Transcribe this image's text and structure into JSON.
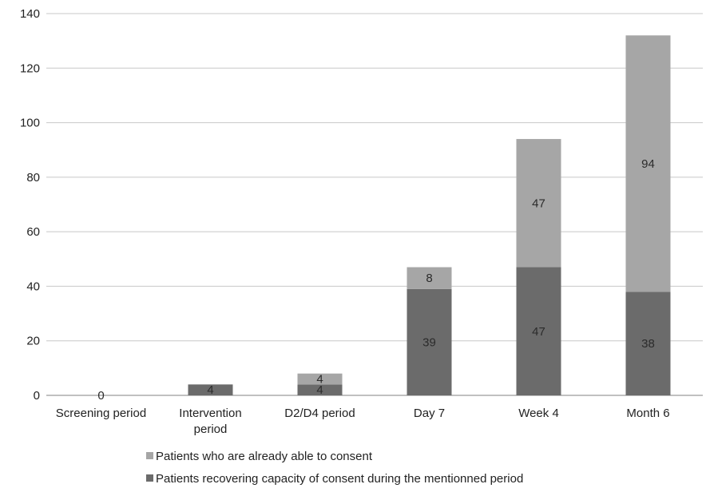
{
  "chart_data": {
    "type": "bar",
    "stacked": true,
    "categories": [
      [
        "Screening period"
      ],
      [
        "Intervention",
        "period"
      ],
      [
        "D2/D4 period"
      ],
      [
        "Day 7"
      ],
      [
        "Week 4"
      ],
      [
        "Month 6"
      ]
    ],
    "series": [
      {
        "name": "Patients recovering capacity of consent during the mentionned period",
        "values": [
          0,
          4,
          4,
          39,
          47,
          38
        ],
        "color": "#6b6b6b"
      },
      {
        "name": "Patients who are already able to consent",
        "values": [
          0,
          0,
          4,
          8,
          47,
          94
        ],
        "color": "#a6a6a6"
      }
    ],
    "data_labels": [
      [
        "0",
        "4",
        "4",
        "39",
        "47",
        "38"
      ],
      [
        "",
        "",
        "4",
        "8",
        "47",
        "94"
      ]
    ],
    "yticks": [
      "0",
      "20",
      "40",
      "60",
      "80",
      "100",
      "120",
      "140"
    ],
    "ylim": [
      0,
      140
    ],
    "grid": true,
    "legend_position": "bottom",
    "title": "",
    "xlabel": "",
    "ylabel": ""
  }
}
